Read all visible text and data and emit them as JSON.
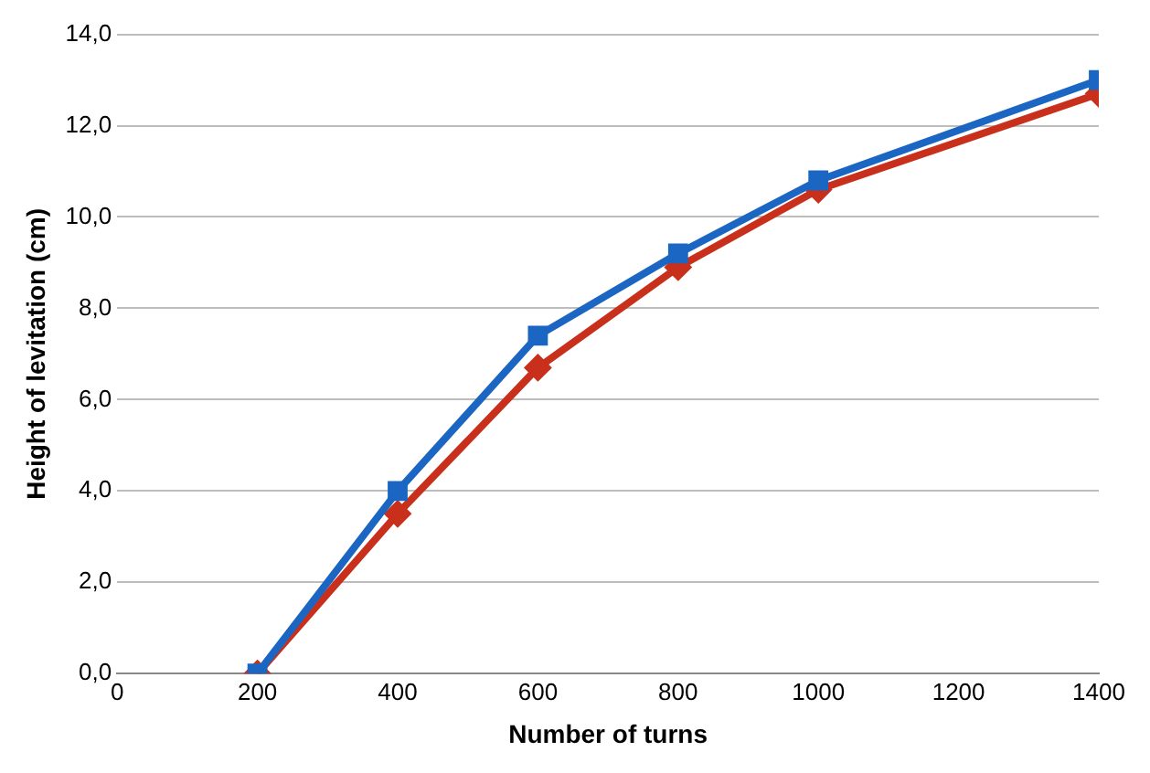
{
  "chart_data": {
    "type": "line",
    "xlabel": "Number of turns",
    "ylabel": "Height of levitation (cm)",
    "x": [
      200,
      400,
      600,
      800,
      1000,
      1400
    ],
    "series": [
      {
        "color": "#c9301c",
        "marker": "diamond",
        "values": [
          0,
          3.5,
          6.7,
          8.9,
          10.6,
          12.7
        ]
      },
      {
        "color": "#1a66c2",
        "marker": "square",
        "values": [
          0,
          4.0,
          7.4,
          9.2,
          10.8,
          13.0
        ]
      }
    ],
    "xlim": [
      0,
      1400
    ],
    "xticks": [
      0,
      200,
      400,
      600,
      800,
      1000,
      1200,
      1400
    ],
    "ylim": [
      0,
      14
    ],
    "yticks": [
      {
        "value": 0,
        "label": "0,0"
      },
      {
        "value": 2,
        "label": "2,0"
      },
      {
        "value": 4,
        "label": "4,0"
      },
      {
        "value": 6,
        "label": "6,0"
      },
      {
        "value": 8,
        "label": "8,0"
      },
      {
        "value": 10,
        "label": "10,0"
      },
      {
        "value": 12,
        "label": "12,0"
      },
      {
        "value": 14,
        "label": "14,0"
      }
    ],
    "grid": "y",
    "legend": false,
    "line_style": "solid"
  }
}
